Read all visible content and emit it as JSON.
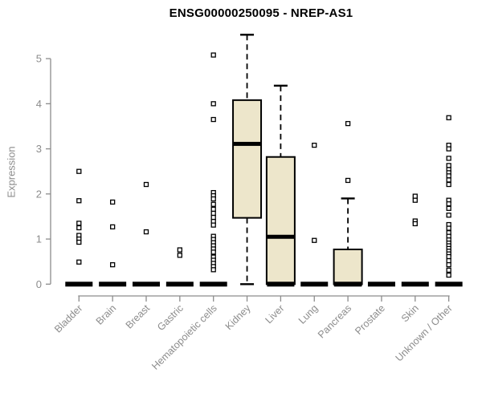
{
  "chart_data": {
    "type": "boxplot",
    "title": "ENSG00000250095 - NREP-AS1",
    "ylabel": "Expression",
    "xlabel": "",
    "ylim": [
      0,
      5
    ],
    "yticks": [
      "0",
      "1",
      "2",
      "3",
      "4",
      "5"
    ],
    "grid": false,
    "legend": "none",
    "colors": {
      "box_fill": "#ede6cb",
      "box_border": "#000000",
      "median": "#000000",
      "point": "#000000",
      "axis": "#8c8c8c",
      "tick_text": "#8c8c8c",
      "title_text": "#000000"
    },
    "categories": [
      {
        "label": "Bladder",
        "median": 0,
        "box": null,
        "points": [
          2.5,
          1.85,
          1.35,
          1.25,
          1.08,
          1.0,
          0.93,
          0.49
        ]
      },
      {
        "label": "Brain",
        "median": 0,
        "box": null,
        "points": [
          1.82,
          1.27,
          0.43
        ]
      },
      {
        "label": "Breast",
        "median": 0,
        "box": null,
        "points": [
          2.21,
          1.16
        ]
      },
      {
        "label": "Gastric",
        "median": 0,
        "box": null,
        "points": [
          0.76,
          0.64
        ]
      },
      {
        "label": "Hematopoietic cells",
        "median": 0,
        "box": null,
        "points": [
          5.08,
          4.0,
          3.65,
          2.03,
          1.96,
          1.89,
          1.77,
          1.66,
          1.57,
          1.48,
          1.39,
          1.31,
          1.06,
          0.99,
          0.92,
          0.85,
          0.78,
          0.71,
          0.6,
          0.53,
          0.46,
          0.39,
          0.32
        ]
      },
      {
        "label": "Kidney",
        "median": 3.11,
        "box": {
          "q1": 1.47,
          "median": 3.11,
          "q3": 4.08,
          "whisker_low": 0,
          "whisker_high": 5.53,
          "zero_bar": false
        },
        "points": []
      },
      {
        "label": "Liver",
        "median": 1.05,
        "box": {
          "q1": 0,
          "median": 1.05,
          "q3": 2.82,
          "whisker_low": 0,
          "whisker_high": 4.4,
          "zero_bar": true
        },
        "points": []
      },
      {
        "label": "Lung",
        "median": 0,
        "box": null,
        "points": [
          3.08,
          0.97
        ]
      },
      {
        "label": "Pancreas",
        "median": 0,
        "box": {
          "q1": 0,
          "median": 0,
          "q3": 0.77,
          "whisker_low": 0,
          "whisker_high": 1.9,
          "zero_bar": true
        },
        "points": [
          3.56,
          2.3
        ]
      },
      {
        "label": "Prostate",
        "median": 0,
        "box": null,
        "points": []
      },
      {
        "label": "Skin",
        "median": 0,
        "box": null,
        "points": [
          1.95,
          1.86,
          1.4,
          1.34
        ]
      },
      {
        "label": "Unknown / Other",
        "median": 0,
        "box": null,
        "points": [
          3.69,
          3.08,
          3.0,
          2.79,
          2.63,
          2.54,
          2.47,
          2.4,
          2.31,
          2.21,
          1.86,
          1.78,
          1.68,
          1.53,
          1.32,
          1.24,
          1.14,
          1.06,
          0.98,
          0.91,
          0.85,
          0.79,
          0.73,
          0.67,
          0.61,
          0.52,
          0.43,
          0.31,
          0.2
        ]
      }
    ]
  }
}
